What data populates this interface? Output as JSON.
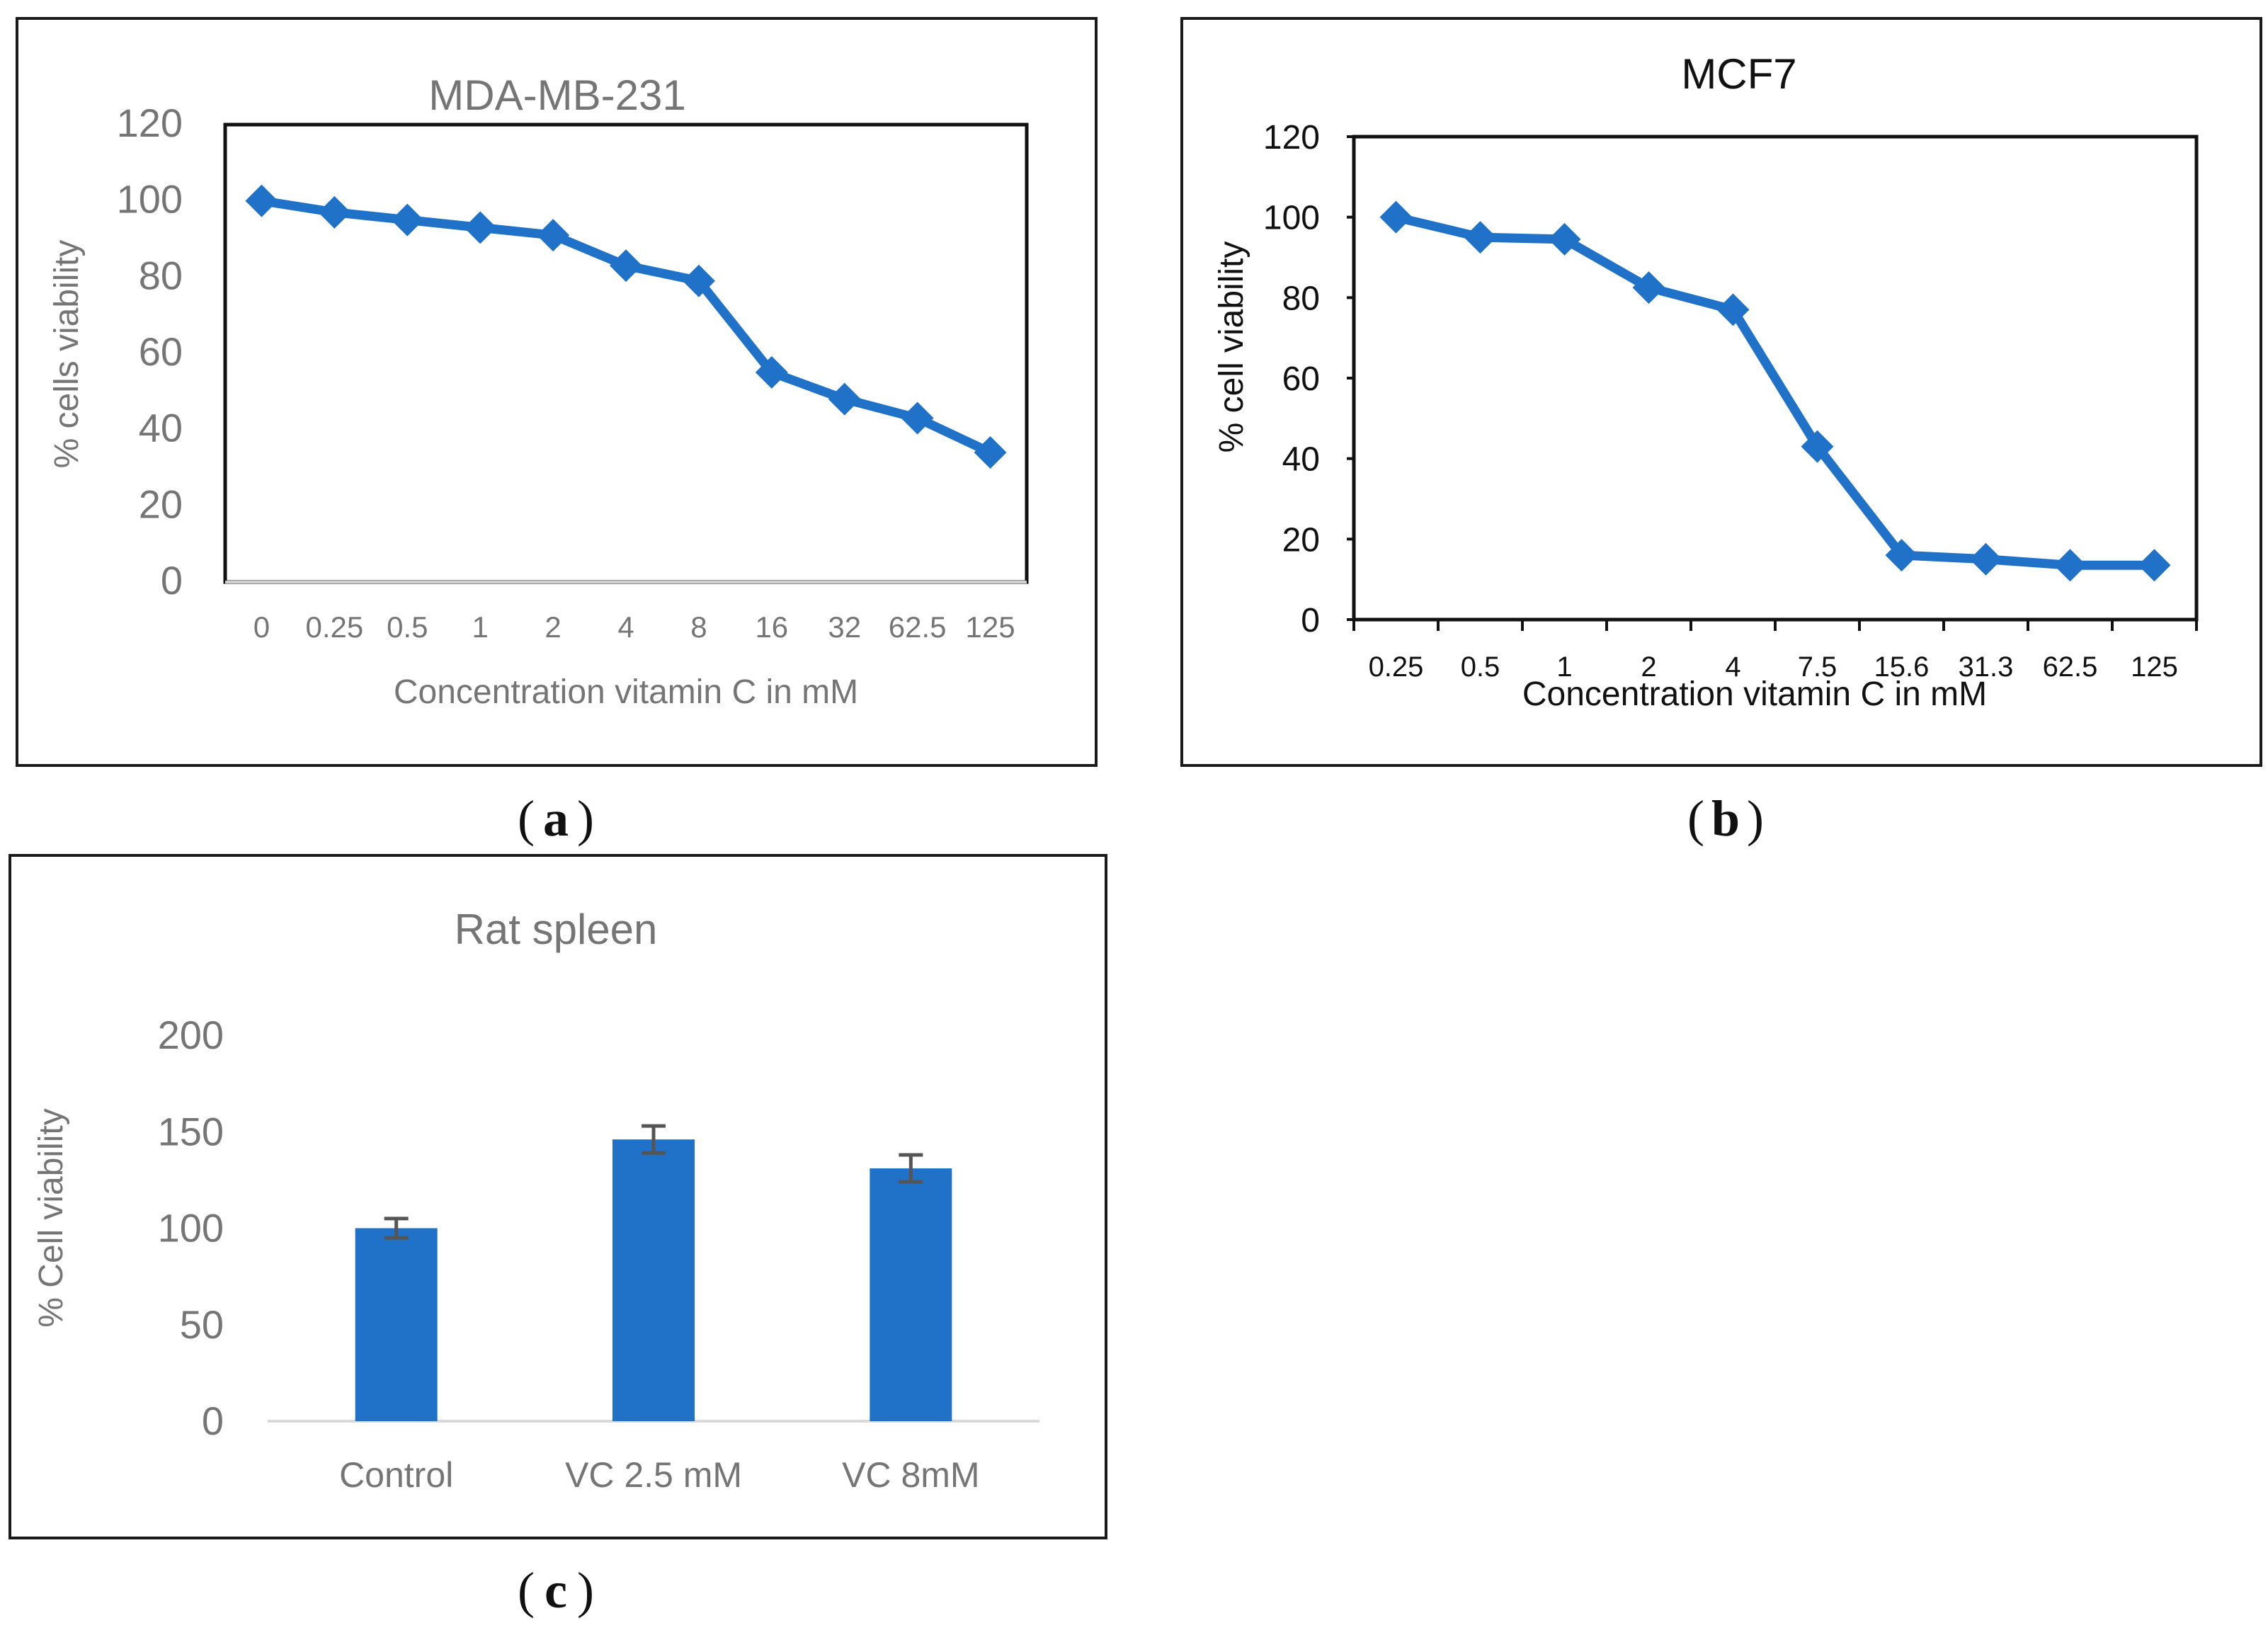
{
  "figure_colors": {
    "series": "#1F72C8",
    "text_gray": "#757575",
    "text_black": "#111111",
    "frame": "#1a1a1a",
    "axis_gray": "#d9d9d9",
    "error_bar": "#555555"
  },
  "panel_labels": {
    "a": "a",
    "b": "b",
    "c": "c"
  },
  "chart_data": [
    {
      "id": "a",
      "type": "line",
      "title": "MDA-MB-231",
      "xlabel": "Concentration vitamin C in mM",
      "ylabel": "% cells viability",
      "categories": [
        "0",
        "0.25",
        "0.5",
        "1",
        "2",
        "4",
        "8",
        "16",
        "32",
        "62.5",
        "125"
      ],
      "series": [
        {
          "name": "MDA-MB-231",
          "values": [
            100,
            97,
            95,
            93,
            91,
            83,
            79,
            55,
            48,
            43,
            34
          ]
        }
      ],
      "ylim": [
        0,
        120
      ],
      "yticks": [
        "0",
        "20",
        "40",
        "60",
        "80",
        "100",
        "120"
      ],
      "marker": "diamond",
      "grid": false
    },
    {
      "id": "b",
      "type": "line",
      "title": "MCF7",
      "xlabel": "Concentration vitamin C in mM",
      "ylabel": "% cell viability",
      "categories": [
        "0.25",
        "0.5",
        "1",
        "2",
        "4",
        "7.5",
        "15.6",
        "31.3",
        "62.5",
        "125"
      ],
      "series": [
        {
          "name": "MCF7",
          "values": [
            100,
            95,
            94.5,
            82.5,
            77,
            43,
            16,
            15,
            13.5,
            13.5
          ]
        }
      ],
      "ylim": [
        0,
        120
      ],
      "yticks": [
        "0",
        "20",
        "40",
        "60",
        "80",
        "100",
        "120"
      ],
      "marker": "diamond",
      "grid": false
    },
    {
      "id": "c",
      "type": "bar",
      "title": "Rat spleen",
      "xlabel": "",
      "ylabel": "% Cell viability",
      "categories": [
        "Control",
        "VC 2.5 mM",
        "VC 8mM"
      ],
      "series": [
        {
          "name": "Rat spleen",
          "values": [
            100,
            146,
            131
          ],
          "errors": [
            5,
            7,
            7
          ]
        }
      ],
      "ylim": [
        0,
        200
      ],
      "yticks": [
        "0",
        "50",
        "100",
        "150",
        "200"
      ],
      "grid": false
    }
  ]
}
